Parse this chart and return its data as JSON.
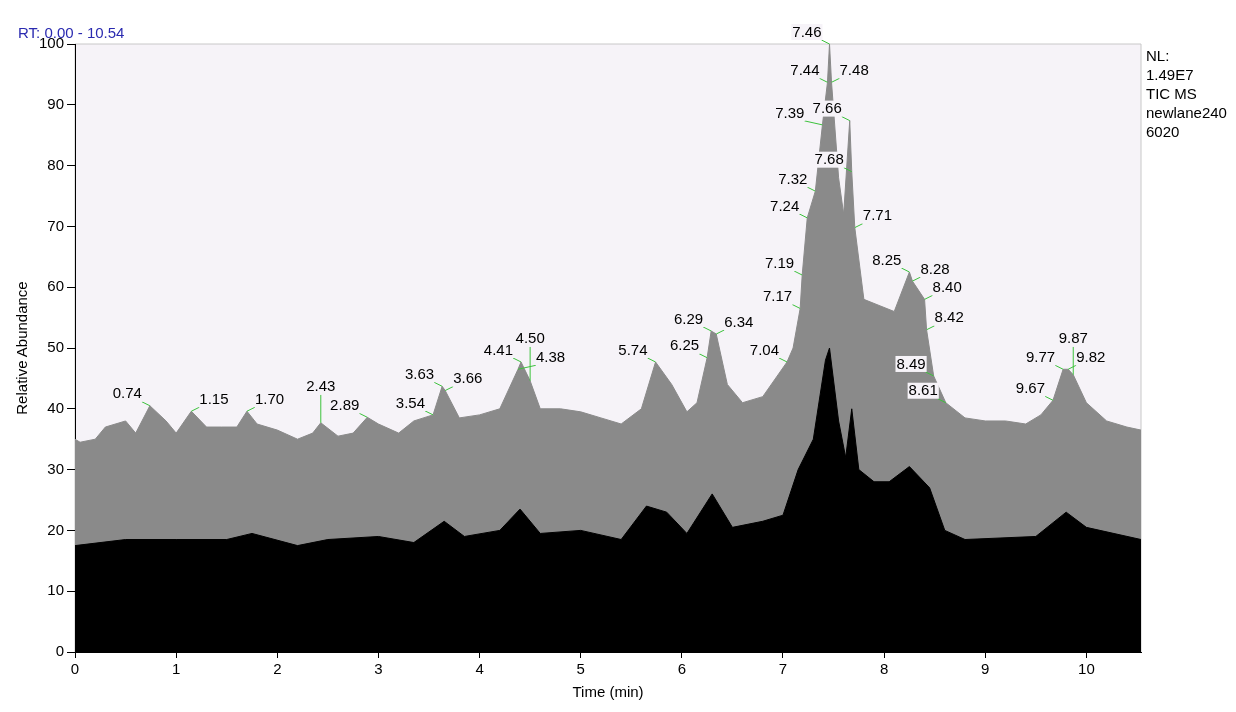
{
  "chart_data": {
    "type": "area",
    "title": "RT: 0.00 - 10.54",
    "xlabel": "Time (min)",
    "ylabel": "Relative Abundance",
    "xlim": [
      0,
      10.54
    ],
    "xticks": [
      0,
      1,
      2,
      3,
      4,
      5,
      6,
      7,
      8,
      9,
      10
    ],
    "ylim": [
      0,
      100
    ],
    "yticks": [
      0,
      10,
      20,
      30,
      40,
      50,
      60,
      70,
      80,
      90,
      100
    ],
    "grid": false,
    "legend": false,
    "series": [
      {
        "color": "#8a8a8a",
        "x": [
          0,
          0.05,
          0.2,
          0.3,
          0.5,
          0.6,
          0.74,
          0.9,
          1.0,
          1.15,
          1.3,
          1.45,
          1.6,
          1.7,
          1.8,
          2.0,
          2.2,
          2.35,
          2.43,
          2.6,
          2.75,
          2.89,
          3.0,
          3.2,
          3.35,
          3.54,
          3.63,
          3.66,
          3.8,
          4.0,
          4.2,
          4.38,
          4.41,
          4.5,
          4.6,
          4.8,
          5.0,
          5.2,
          5.4,
          5.6,
          5.74,
          5.9,
          6.05,
          6.15,
          6.25,
          6.29,
          6.34,
          6.45,
          6.6,
          6.8,
          7.04,
          7.1,
          7.17,
          7.19,
          7.24,
          7.32,
          7.39,
          7.44,
          7.46,
          7.48,
          7.55,
          7.6,
          7.66,
          7.68,
          7.71,
          7.8,
          7.95,
          8.1,
          8.25,
          8.28,
          8.4,
          8.42,
          8.49,
          8.61,
          8.8,
          9.0,
          9.2,
          9.4,
          9.55,
          9.67,
          9.77,
          9.82,
          9.87,
          10.0,
          10.2,
          10.4,
          10.54
        ],
        "values": [
          35,
          34.5,
          35,
          37,
          38,
          36,
          40.5,
          38,
          36,
          39.6,
          37,
          37,
          37,
          39.6,
          37.5,
          36.5,
          35,
          36,
          37.7,
          35.5,
          36,
          38.6,
          37.5,
          36,
          38,
          39,
          43.7,
          43,
          38.5,
          39,
          40,
          46.5,
          47.7,
          44.6,
          40,
          40,
          39.5,
          38.5,
          37.5,
          40,
          47.7,
          44,
          39.5,
          41,
          48.4,
          52.8,
          52.3,
          44,
          41,
          42,
          47.7,
          50,
          56.5,
          62,
          71.4,
          75.8,
          86.7,
          93.7,
          100,
          93.7,
          78,
          72,
          87.4,
          79,
          69.8,
          58,
          57,
          56,
          62.5,
          61,
          58,
          53,
          45.4,
          41,
          38.5,
          38,
          38,
          37.5,
          39,
          41.4,
          46.5,
          46.5,
          45.6,
          41,
          38,
          37,
          36.5
        ]
      },
      {
        "color": "#000000",
        "x": [
          0,
          0.5,
          1.0,
          1.5,
          1.75,
          2.2,
          2.5,
          3.0,
          3.35,
          3.65,
          3.85,
          4.2,
          4.4,
          4.6,
          5.0,
          5.4,
          5.65,
          5.85,
          6.05,
          6.3,
          6.5,
          6.8,
          7.0,
          7.15,
          7.3,
          7.42,
          7.46,
          7.55,
          7.62,
          7.68,
          7.75,
          7.9,
          8.05,
          8.25,
          8.45,
          8.6,
          8.8,
          9.5,
          9.8,
          10.0,
          10.54
        ],
        "values": [
          17.5,
          18.5,
          18.5,
          18.5,
          19.5,
          17.5,
          18.5,
          19,
          18,
          21.5,
          19,
          20,
          23.5,
          19.5,
          20,
          18.5,
          24,
          23,
          19.5,
          26,
          20.5,
          21.5,
          22.5,
          30,
          35,
          48,
          50,
          38,
          32,
          40,
          30,
          28,
          28,
          30.5,
          27,
          20,
          18.5,
          19,
          23,
          20.5,
          18.5
        ]
      }
    ],
    "annotations": [
      "NL:",
      "1.49E7",
      "TIC MS",
      "newlane240",
      "6020",
      {
        "text": "0.74",
        "x": 0.74,
        "y": 40.5
      },
      {
        "text": "1.15",
        "x": 1.15,
        "y": 39.6
      },
      {
        "text": "1.70",
        "x": 1.7,
        "y": 39.6
      },
      {
        "text": "2.43",
        "x": 2.43,
        "y": 37.7
      },
      {
        "text": "2.89",
        "x": 2.89,
        "y": 38.6
      },
      {
        "text": "3.54",
        "x": 3.54,
        "y": 39
      },
      {
        "text": "3.63",
        "x": 3.63,
        "y": 43.7
      },
      {
        "text": "3.66",
        "x": 3.66,
        "y": 43
      },
      {
        "text": "4.38",
        "x": 4.38,
        "y": 46.5
      },
      {
        "text": "4.41",
        "x": 4.41,
        "y": 47.7
      },
      {
        "text": "4.50",
        "x": 4.5,
        "y": 44.6
      },
      {
        "text": "5.74",
        "x": 5.74,
        "y": 47.7
      },
      {
        "text": "6.25",
        "x": 6.25,
        "y": 48.4
      },
      {
        "text": "6.29",
        "x": 6.29,
        "y": 52.8
      },
      {
        "text": "6.34",
        "x": 6.34,
        "y": 52.3
      },
      {
        "text": "7.04",
        "x": 7.04,
        "y": 47.7
      },
      {
        "text": "7.17",
        "x": 7.17,
        "y": 56.5
      },
      {
        "text": "7.19",
        "x": 7.19,
        "y": 62
      },
      {
        "text": "7.24",
        "x": 7.24,
        "y": 71.4
      },
      {
        "text": "7.32",
        "x": 7.32,
        "y": 75.8
      },
      {
        "text": "7.39",
        "x": 7.39,
        "y": 86.7
      },
      {
        "text": "7.44",
        "x": 7.44,
        "y": 93.7
      },
      {
        "text": "7.46",
        "x": 7.46,
        "y": 100
      },
      {
        "text": "7.48",
        "x": 7.48,
        "y": 93.7
      },
      {
        "text": "7.66",
        "x": 7.66,
        "y": 87.4
      },
      {
        "text": "7.68",
        "x": 7.68,
        "y": 79
      },
      {
        "text": "7.71",
        "x": 7.71,
        "y": 69.8
      },
      {
        "text": "8.25",
        "x": 8.25,
        "y": 62.5
      },
      {
        "text": "8.28",
        "x": 8.28,
        "y": 61
      },
      {
        "text": "8.40",
        "x": 8.4,
        "y": 58
      },
      {
        "text": "8.42",
        "x": 8.42,
        "y": 53
      },
      {
        "text": "8.49",
        "x": 8.49,
        "y": 45.4
      },
      {
        "text": "8.61",
        "x": 8.61,
        "y": 41
      },
      {
        "text": "9.67",
        "x": 9.67,
        "y": 41.4
      },
      {
        "text": "9.77",
        "x": 9.77,
        "y": 46.5
      },
      {
        "text": "9.82",
        "x": 9.82,
        "y": 46.5
      },
      {
        "text": "9.87",
        "x": 9.87,
        "y": 45.6
      }
    ]
  }
}
